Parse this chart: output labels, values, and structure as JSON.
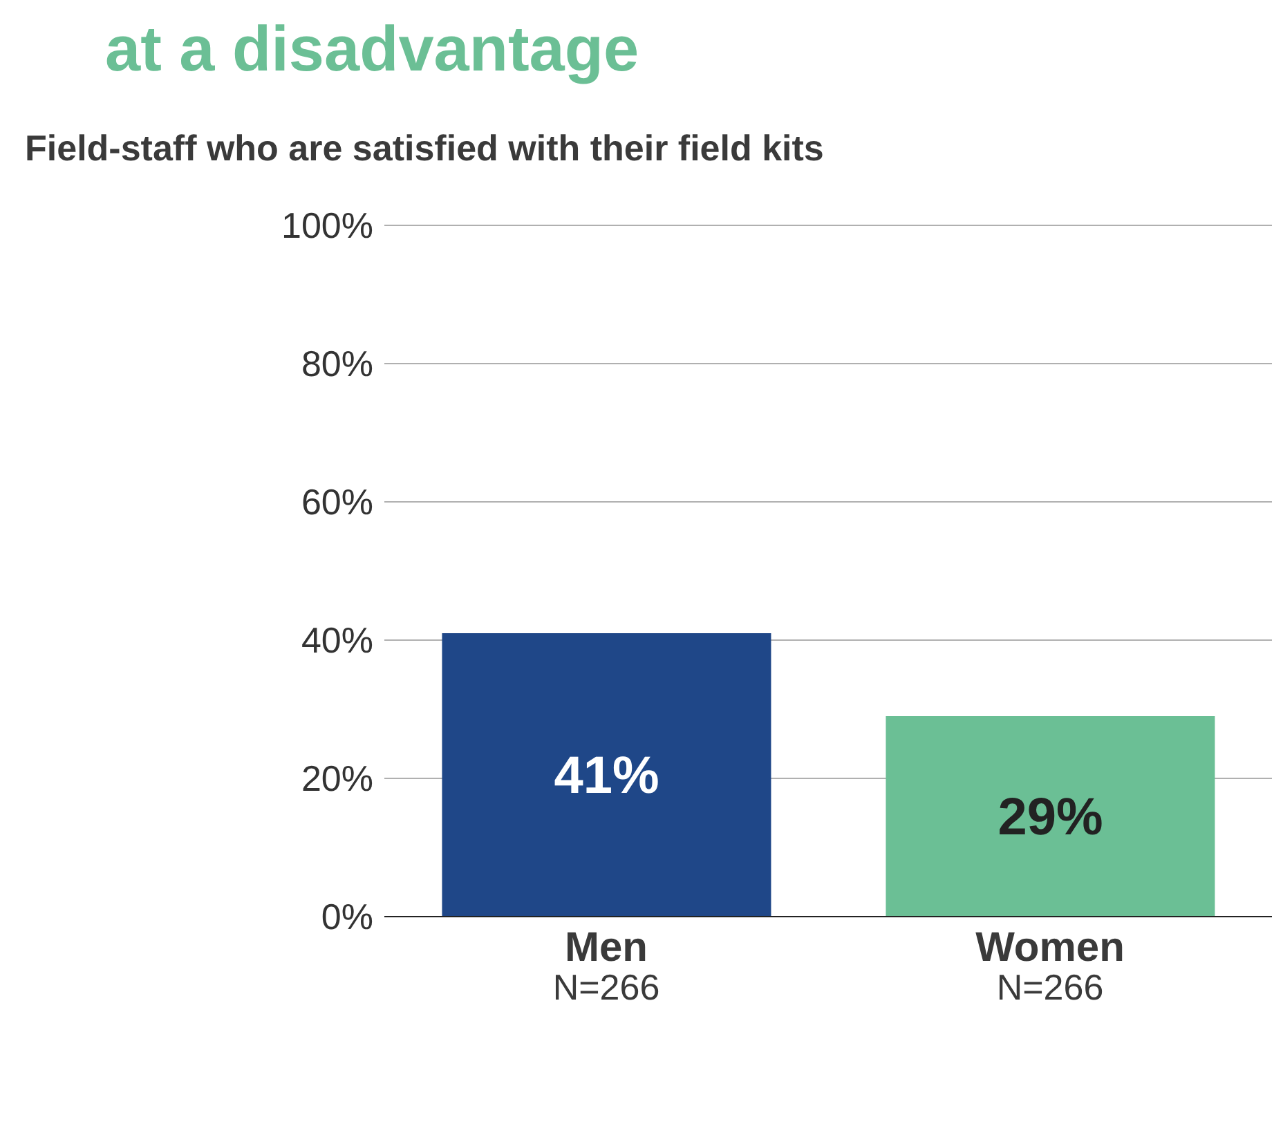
{
  "chart_data": {
    "type": "bar",
    "title": "at a disadvantage",
    "subtitle": "Field-staff who are satisfied with their field kits",
    "categories": [
      "Men\nN=266",
      "Women\nN=266"
    ],
    "values": [
      41,
      29
    ],
    "colors": [
      "#1f4788",
      "#6bbf95"
    ],
    "ylim": [
      0,
      100
    ],
    "yticks": [
      {
        "value": 0,
        "label": "0%"
      },
      {
        "value": 20,
        "label": "20%"
      },
      {
        "value": 40,
        "label": "40%"
      },
      {
        "value": 60,
        "label": "60%"
      },
      {
        "value": 80,
        "label": "80%"
      },
      {
        "value": 100,
        "label": "100%"
      }
    ],
    "value_labels": [
      "41%",
      "29%"
    ],
    "grid": "y"
  }
}
